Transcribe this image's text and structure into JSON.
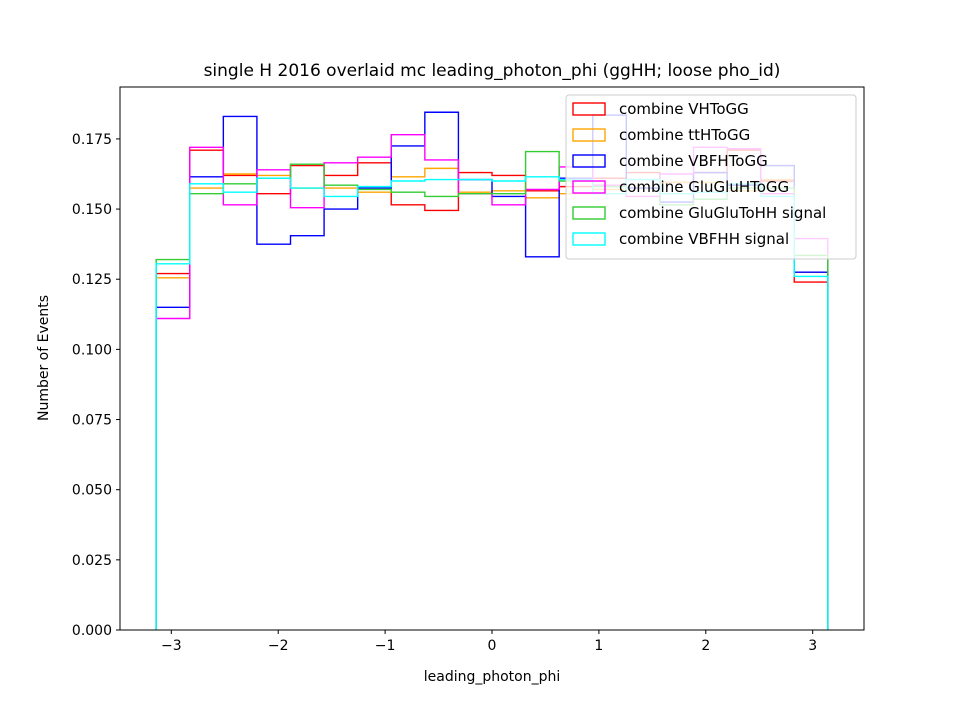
{
  "chart_data": {
    "type": "step-histogram",
    "title": "single H 2016 overlaid mc leading_photon_phi (ggHH; loose pho_id)",
    "xlabel": "leading_photon_phi",
    "ylabel": "Number of Events",
    "xlim": [
      -3.48,
      3.48
    ],
    "ylim": [
      0,
      0.1935
    ],
    "xticks": [
      -3,
      -2,
      -1,
      0,
      1,
      2,
      3
    ],
    "xtick_labels": [
      "−3",
      "−2",
      "−1",
      "0",
      "1",
      "2",
      "3"
    ],
    "yticks": [
      0,
      0.025,
      0.05,
      0.075,
      0.1,
      0.125,
      0.15,
      0.175
    ],
    "ytick_labels": [
      "0.000",
      "0.025",
      "0.050",
      "0.075",
      "0.100",
      "0.125",
      "0.150",
      "0.175"
    ],
    "legend_position": "upper-right",
    "bin_edges": [
      -3.1416,
      -2.8274,
      -2.5133,
      -2.1991,
      -1.885,
      -1.5708,
      -1.2566,
      -0.9425,
      -0.6283,
      -0.3142,
      0,
      0.3142,
      0.6283,
      0.9425,
      1.2566,
      1.5708,
      1.885,
      2.1991,
      2.5133,
      2.8274,
      3.1416
    ],
    "series": [
      {
        "name": "combine VHToGG",
        "color": "#ff0000",
        "values": [
          0.127,
          0.171,
          0.162,
          0.1555,
          0.1655,
          0.162,
          0.1665,
          0.1515,
          0.1495,
          0.163,
          0.162,
          0.1565,
          0.158,
          0.161,
          0.163,
          0.1595,
          0.163,
          0.171,
          0.16,
          0.124
        ]
      },
      {
        "name": "combine ttHToGG",
        "color": "#ffa500",
        "values": [
          0.1255,
          0.1575,
          0.1625,
          0.162,
          0.1575,
          0.1575,
          0.156,
          0.1615,
          0.1645,
          0.156,
          0.1565,
          0.154,
          0.1555,
          0.157,
          0.1575,
          0.1595,
          0.1595,
          0.1565,
          0.1605,
          0.1275
        ]
      },
      {
        "name": "combine VBFHToGG",
        "color": "#0000ff",
        "values": [
          0.115,
          0.1615,
          0.183,
          0.1375,
          0.1405,
          0.15,
          0.1575,
          0.1725,
          0.1845,
          0.1605,
          0.1545,
          0.133,
          0.161,
          0.1835,
          0.1575,
          0.1525,
          0.163,
          0.1585,
          0.1655,
          0.1275
        ]
      },
      {
        "name": "combine GluGluHToGG",
        "color": "#ff00ff",
        "values": [
          0.111,
          0.172,
          0.1515,
          0.164,
          0.1505,
          0.1665,
          0.1685,
          0.1765,
          0.1675,
          0.1555,
          0.1515,
          0.157,
          0.165,
          0.1585,
          0.1545,
          0.1625,
          0.172,
          0.1715,
          0.1555,
          0.1395
        ]
      },
      {
        "name": "combine GluGluToHH signal",
        "color": "#32cd32",
        "values": [
          0.132,
          0.1555,
          0.159,
          0.161,
          0.166,
          0.1585,
          0.157,
          0.156,
          0.1545,
          0.1555,
          0.1555,
          0.1705,
          0.16,
          0.158,
          0.1605,
          0.1515,
          0.1535,
          0.1575,
          0.1575,
          0.1335
        ]
      },
      {
        "name": "combine VBFHH signal",
        "color": "#00ffff",
        "values": [
          0.1305,
          0.159,
          0.156,
          0.161,
          0.1575,
          0.1545,
          0.158,
          0.16,
          0.1605,
          0.1605,
          0.16,
          0.1615,
          0.1605,
          0.1555,
          0.1605,
          0.1555,
          0.156,
          0.159,
          0.1545,
          0.126
        ]
      }
    ]
  }
}
